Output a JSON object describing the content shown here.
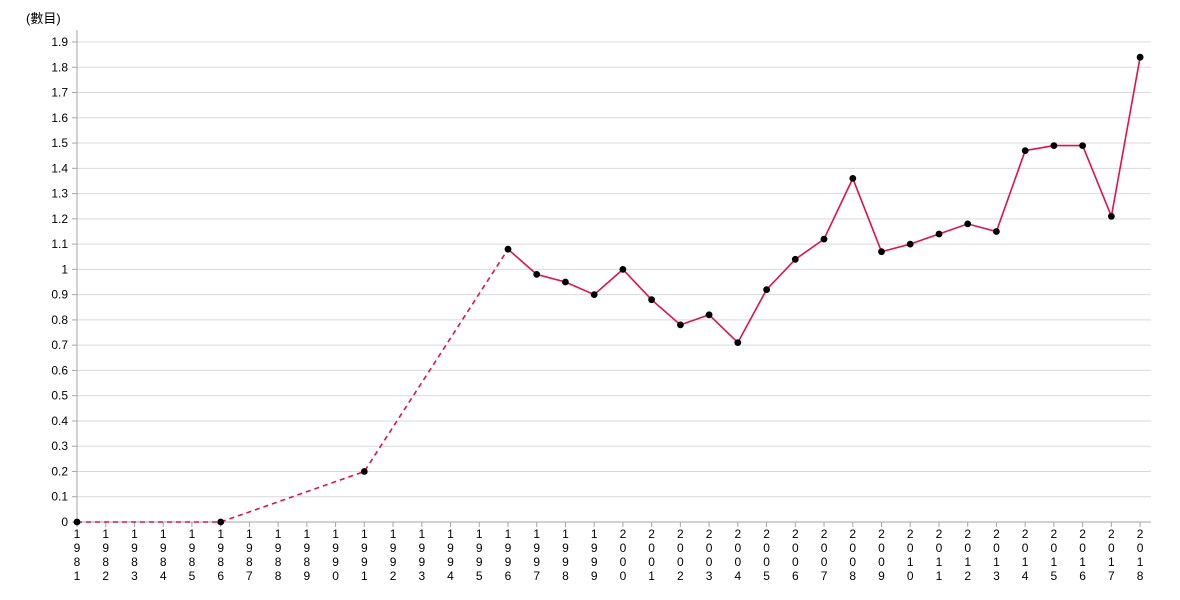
{
  "chart_data": {
    "type": "line",
    "title": "",
    "ylabel": "(數目)",
    "xlabel": "",
    "ylim": [
      0,
      1.9
    ],
    "ytick_step": 0.1,
    "grid": true,
    "legend": "none",
    "colors": {
      "grid": "#d9d9d9",
      "axis": "#a6a6a6",
      "text": "#000000",
      "background": "#ffffff"
    },
    "x_labels": [
      "1981",
      "1982",
      "1983",
      "1984",
      "1985",
      "1986",
      "1987",
      "1988",
      "1989",
      "1990",
      "1991",
      "1992",
      "1993",
      "1994",
      "1995",
      "1996",
      "1997",
      "1998",
      "1999",
      "2000",
      "2001",
      "2002",
      "2003",
      "2004",
      "2005",
      "2006",
      "2007",
      "2008",
      "2009",
      "2010",
      "2011",
      "2012",
      "2013",
      "2014",
      "2015",
      "2016",
      "2017",
      "2018"
    ],
    "series": [
      {
        "name": "數目",
        "color": "#e0114b",
        "marker_color": "#000000",
        "marker": "circle",
        "dashed_until_x": "1996",
        "x": [
          "1981",
          "1986",
          "1991",
          "1996",
          "1997",
          "1998",
          "1999",
          "2000",
          "2001",
          "2002",
          "2003",
          "2004",
          "2005",
          "2006",
          "2007",
          "2008",
          "2009",
          "2010",
          "2011",
          "2012",
          "2013",
          "2014",
          "2015",
          "2016",
          "2017",
          "2018"
        ],
        "values": [
          0,
          0,
          0.2,
          1.08,
          0.98,
          0.95,
          0.9,
          1.0,
          0.88,
          0.78,
          0.82,
          0.71,
          0.92,
          1.04,
          1.12,
          1.36,
          1.07,
          1.1,
          1.14,
          1.18,
          1.15,
          1.47,
          1.49,
          1.49,
          1.21,
          1.84
        ]
      }
    ]
  }
}
